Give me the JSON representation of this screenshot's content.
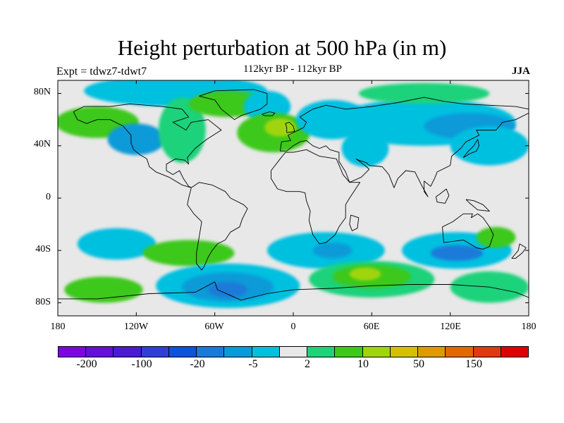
{
  "title": "Height perturbation at 500 hPa (in m)",
  "subtitle": "112kyr BP - 112kyr BP",
  "left_label": "Expt = tdwz7-tdwt7",
  "right_label": "JJA",
  "y_ticks": [
    "80N",
    "40N",
    "0",
    "40S",
    "80S"
  ],
  "x_ticks": [
    "180",
    "120W",
    "60W",
    "0",
    "60E",
    "120E",
    "180"
  ],
  "colorbar": {
    "colors": [
      "#7d06e0",
      "#6410d8",
      "#4a1bd1",
      "#2f3fd5",
      "#0a55d8",
      "#1a7ad8",
      "#0a9ad8",
      "#00c0e0",
      "#e8e8e8",
      "#1ed27a",
      "#3ec81a",
      "#a0d50a",
      "#d5c000",
      "#e09a00",
      "#e06a00",
      "#e03a10",
      "#e00000"
    ],
    "labels": [
      "-200",
      "-100",
      "-20",
      "-5",
      "2",
      "10",
      "50",
      "150"
    ]
  },
  "colors": {
    "neutral": "#e8e8e8",
    "light_blue": "#00c0e0",
    "mid_blue": "#0a9ad8",
    "deep_blue": "#1a7ad8",
    "green": "#1ed27a",
    "lime": "#3ec81a",
    "yellow_green": "#a0d50a",
    "coastline": "#000000"
  },
  "map_data": {
    "field": "500 hPa geopotential height perturbation",
    "units": "m",
    "season": "JJA",
    "lon_range": [
      -180,
      180
    ],
    "lat_range": [
      -90,
      90
    ],
    "anomalies": [
      {
        "lon": -90,
        "lat": 82,
        "rx": 70,
        "ry": 12,
        "level": "light_blue"
      },
      {
        "lon": -150,
        "lat": 58,
        "rx": 32,
        "ry": 12,
        "level": "lime"
      },
      {
        "lon": -120,
        "lat": 45,
        "rx": 22,
        "ry": 12,
        "level": "mid_blue"
      },
      {
        "lon": -85,
        "lat": 52,
        "rx": 18,
        "ry": 25,
        "level": "green"
      },
      {
        "lon": -50,
        "lat": 72,
        "rx": 30,
        "ry": 10,
        "level": "lime"
      },
      {
        "lon": -20,
        "lat": 70,
        "rx": 18,
        "ry": 12,
        "level": "light_blue"
      },
      {
        "lon": -15,
        "lat": 50,
        "rx": 28,
        "ry": 15,
        "level": "lime"
      },
      {
        "lon": -10,
        "lat": 54,
        "rx": 12,
        "ry": 7,
        "level": "yellow_green"
      },
      {
        "lon": 30,
        "lat": 60,
        "rx": 28,
        "ry": 15,
        "level": "light_blue"
      },
      {
        "lon": 55,
        "lat": 38,
        "rx": 18,
        "ry": 14,
        "level": "light_blue"
      },
      {
        "lon": 100,
        "lat": 58,
        "rx": 70,
        "ry": 18,
        "level": "light_blue"
      },
      {
        "lon": 135,
        "lat": 55,
        "rx": 35,
        "ry": 10,
        "level": "mid_blue"
      },
      {
        "lon": 100,
        "lat": 80,
        "rx": 50,
        "ry": 8,
        "level": "green"
      },
      {
        "lon": 150,
        "lat": 40,
        "rx": 30,
        "ry": 15,
        "level": "light_blue"
      },
      {
        "lon": -135,
        "lat": -35,
        "rx": 30,
        "ry": 12,
        "level": "light_blue"
      },
      {
        "lon": -80,
        "lat": -42,
        "rx": 35,
        "ry": 10,
        "level": "lime"
      },
      {
        "lon": 25,
        "lat": -40,
        "rx": 45,
        "ry": 14,
        "level": "light_blue"
      },
      {
        "lon": 30,
        "lat": -40,
        "rx": 15,
        "ry": 6,
        "level": "mid_blue"
      },
      {
        "lon": 125,
        "lat": -40,
        "rx": 42,
        "ry": 14,
        "level": "light_blue"
      },
      {
        "lon": 125,
        "lat": -42,
        "rx": 20,
        "ry": 6,
        "level": "deep_blue"
      },
      {
        "lon": 155,
        "lat": -30,
        "rx": 15,
        "ry": 8,
        "level": "lime"
      },
      {
        "lon": -50,
        "lat": -67,
        "rx": 55,
        "ry": 17,
        "level": "light_blue"
      },
      {
        "lon": -50,
        "lat": -68,
        "rx": 35,
        "ry": 11,
        "level": "mid_blue"
      },
      {
        "lon": -50,
        "lat": -70,
        "rx": 15,
        "ry": 6,
        "level": "deep_blue"
      },
      {
        "lon": -145,
        "lat": -70,
        "rx": 30,
        "ry": 10,
        "level": "lime"
      },
      {
        "lon": 60,
        "lat": -62,
        "rx": 48,
        "ry": 14,
        "level": "green"
      },
      {
        "lon": 60,
        "lat": -60,
        "rx": 30,
        "ry": 9,
        "level": "lime"
      },
      {
        "lon": 55,
        "lat": -58,
        "rx": 12,
        "ry": 5,
        "level": "yellow_green"
      },
      {
        "lon": 150,
        "lat": -68,
        "rx": 30,
        "ry": 12,
        "level": "green"
      }
    ],
    "coastlines": [
      {
        "name": "north-america",
        "points": [
          [
            -168,
            66
          ],
          [
            -160,
            70
          ],
          [
            -140,
            70
          ],
          [
            -125,
            72
          ],
          [
            -100,
            70
          ],
          [
            -85,
            68
          ],
          [
            -80,
            62
          ],
          [
            -92,
            58
          ],
          [
            -82,
            52
          ],
          [
            -78,
            58
          ],
          [
            -65,
            60
          ],
          [
            -55,
            52
          ],
          [
            -66,
            45
          ],
          [
            -70,
            42
          ],
          [
            -75,
            38
          ],
          [
            -81,
            31
          ],
          [
            -80,
            26
          ],
          [
            -83,
            29
          ],
          [
            -90,
            30
          ],
          [
            -97,
            26
          ],
          [
            -97,
            21
          ],
          [
            -92,
            18
          ],
          [
            -87,
            21
          ],
          [
            -84,
            15
          ],
          [
            -80,
            9
          ],
          [
            -78,
            8
          ],
          [
            -85,
            10
          ],
          [
            -95,
            16
          ],
          [
            -105,
            20
          ],
          [
            -110,
            24
          ],
          [
            -112,
            30
          ],
          [
            -117,
            33
          ],
          [
            -122,
            37
          ],
          [
            -124,
            42
          ],
          [
            -124,
            48
          ],
          [
            -130,
            55
          ],
          [
            -140,
            60
          ],
          [
            -150,
            60
          ],
          [
            -158,
            57
          ],
          [
            -165,
            60
          ],
          [
            -168,
            66
          ]
        ]
      },
      {
        "name": "greenland",
        "points": [
          [
            -72,
            78
          ],
          [
            -60,
            82
          ],
          [
            -30,
            83
          ],
          [
            -20,
            80
          ],
          [
            -20,
            72
          ],
          [
            -25,
            68
          ],
          [
            -40,
            63
          ],
          [
            -45,
            60
          ],
          [
            -50,
            64
          ],
          [
            -55,
            68
          ],
          [
            -60,
            75
          ],
          [
            -72,
            78
          ]
        ]
      },
      {
        "name": "south-america",
        "points": [
          [
            -78,
            8
          ],
          [
            -72,
            12
          ],
          [
            -62,
            10
          ],
          [
            -52,
            5
          ],
          [
            -48,
            0
          ],
          [
            -38,
            -5
          ],
          [
            -35,
            -8
          ],
          [
            -39,
            -16
          ],
          [
            -41,
            -22
          ],
          [
            -48,
            -26
          ],
          [
            -52,
            -32
          ],
          [
            -58,
            -35
          ],
          [
            -62,
            -40
          ],
          [
            -65,
            -45
          ],
          [
            -68,
            -52
          ],
          [
            -70,
            -55
          ],
          [
            -74,
            -50
          ],
          [
            -74,
            -42
          ],
          [
            -72,
            -30
          ],
          [
            -70,
            -18
          ],
          [
            -76,
            -12
          ],
          [
            -81,
            -5
          ],
          [
            -80,
            0
          ],
          [
            -78,
            8
          ]
        ]
      },
      {
        "name": "africa",
        "points": [
          [
            -17,
            21
          ],
          [
            -17,
            15
          ],
          [
            -12,
            7
          ],
          [
            -5,
            5
          ],
          [
            5,
            5
          ],
          [
            9,
            4
          ],
          [
            10,
            -2
          ],
          [
            13,
            -10
          ],
          [
            12,
            -17
          ],
          [
            15,
            -28
          ],
          [
            20,
            -35
          ],
          [
            25,
            -34
          ],
          [
            32,
            -28
          ],
          [
            35,
            -22
          ],
          [
            40,
            -15
          ],
          [
            40,
            -5
          ],
          [
            43,
            0
          ],
          [
            51,
            12
          ],
          [
            43,
            12
          ],
          [
            38,
            18
          ],
          [
            33,
            30
          ],
          [
            20,
            32
          ],
          [
            10,
            37
          ],
          [
            0,
            35
          ],
          [
            -6,
            35
          ],
          [
            -10,
            30
          ],
          [
            -17,
            21
          ]
        ]
      },
      {
        "name": "eurasia",
        "points": [
          [
            -10,
            36
          ],
          [
            -9,
            43
          ],
          [
            -2,
            44
          ],
          [
            -4,
            48
          ],
          [
            2,
            51
          ],
          [
            8,
            54
          ],
          [
            10,
            58
          ],
          [
            5,
            62
          ],
          [
            15,
            68
          ],
          [
            25,
            71
          ],
          [
            40,
            68
          ],
          [
            60,
            70
          ],
          [
            80,
            73
          ],
          [
            100,
            77
          ],
          [
            115,
            74
          ],
          [
            130,
            72
          ],
          [
            150,
            71
          ],
          [
            170,
            70
          ],
          [
            180,
            68
          ],
          [
            180,
            65
          ],
          [
            170,
            60
          ],
          [
            160,
            58
          ],
          [
            155,
            52
          ],
          [
            140,
            52
          ],
          [
            142,
            48
          ],
          [
            132,
            43
          ],
          [
            128,
            38
          ],
          [
            121,
            32
          ],
          [
            120,
            25
          ],
          [
            110,
            20
          ],
          [
            108,
            15
          ],
          [
            105,
            9
          ],
          [
            100,
            13
          ],
          [
            100,
            5
          ],
          [
            103,
            1
          ],
          [
            98,
            10
          ],
          [
            93,
            20
          ],
          [
            86,
            21
          ],
          [
            80,
            15
          ],
          [
            77,
            8
          ],
          [
            73,
            18
          ],
          [
            68,
            24
          ],
          [
            58,
            25
          ],
          [
            56,
            27
          ],
          [
            50,
            29
          ],
          [
            48,
            30
          ],
          [
            56,
            24
          ],
          [
            58,
            22
          ],
          [
            52,
            16
          ],
          [
            43,
            12
          ],
          [
            40,
            20
          ],
          [
            35,
            28
          ],
          [
            35,
            35
          ],
          [
            28,
            37
          ],
          [
            25,
            40
          ],
          [
            20,
            38
          ],
          [
            15,
            40
          ],
          [
            10,
            44
          ],
          [
            5,
            43
          ],
          [
            0,
            40
          ],
          [
            -5,
            36
          ],
          [
            -10,
            36
          ]
        ]
      },
      {
        "name": "australia",
        "points": [
          [
            114,
            -22
          ],
          [
            122,
            -18
          ],
          [
            130,
            -12
          ],
          [
            137,
            -12
          ],
          [
            136,
            -15
          ],
          [
            141,
            -12
          ],
          [
            145,
            -15
          ],
          [
            150,
            -22
          ],
          [
            153,
            -28
          ],
          [
            150,
            -37
          ],
          [
            145,
            -39
          ],
          [
            140,
            -38
          ],
          [
            135,
            -35
          ],
          [
            130,
            -32
          ],
          [
            115,
            -34
          ],
          [
            114,
            -22
          ]
        ]
      },
      {
        "name": "antarctica-edge",
        "points": [
          [
            -180,
            -77
          ],
          [
            -150,
            -77
          ],
          [
            -110,
            -73
          ],
          [
            -75,
            -72
          ],
          [
            -60,
            -64
          ],
          [
            -58,
            -70
          ],
          [
            -40,
            -78
          ],
          [
            -20,
            -73
          ],
          [
            0,
            -70
          ],
          [
            30,
            -69
          ],
          [
            60,
            -67
          ],
          [
            90,
            -66
          ],
          [
            120,
            -66
          ],
          [
            150,
            -68
          ],
          [
            170,
            -72
          ],
          [
            180,
            -76
          ]
        ]
      },
      {
        "name": "british-isles",
        "points": [
          [
            -5,
            50
          ],
          [
            1,
            51
          ],
          [
            0,
            55
          ],
          [
            -3,
            58
          ],
          [
            -6,
            57
          ],
          [
            -5,
            54
          ],
          [
            -5,
            50
          ]
        ]
      },
      {
        "name": "japan",
        "points": [
          [
            130,
            31
          ],
          [
            135,
            34
          ],
          [
            140,
            36
          ],
          [
            142,
            40
          ],
          [
            141,
            45
          ],
          [
            138,
            40
          ],
          [
            133,
            35
          ],
          [
            130,
            31
          ]
        ]
      },
      {
        "name": "madagascar",
        "points": [
          [
            44,
            -13
          ],
          [
            50,
            -15
          ],
          [
            49,
            -23
          ],
          [
            45,
            -25
          ],
          [
            43,
            -20
          ],
          [
            44,
            -13
          ]
        ]
      },
      {
        "name": "borneo",
        "points": [
          [
            109,
            1
          ],
          [
            112,
            3
          ],
          [
            117,
            7
          ],
          [
            119,
            2
          ],
          [
            116,
            -4
          ],
          [
            110,
            -3
          ],
          [
            109,
            1
          ]
        ]
      },
      {
        "name": "new-guinea",
        "points": [
          [
            132,
            -1
          ],
          [
            138,
            -2
          ],
          [
            145,
            -5
          ],
          [
            150,
            -10
          ],
          [
            141,
            -9
          ],
          [
            135,
            -4
          ],
          [
            132,
            -1
          ]
        ]
      },
      {
        "name": "new-zealand",
        "points": [
          [
            173,
            -35
          ],
          [
            178,
            -38
          ],
          [
            175,
            -42
          ],
          [
            170,
            -46
          ],
          [
            167,
            -46
          ],
          [
            172,
            -40
          ],
          [
            173,
            -35
          ]
        ]
      },
      {
        "name": "iceland",
        "points": [
          [
            -24,
            64
          ],
          [
            -18,
            66
          ],
          [
            -14,
            65
          ],
          [
            -16,
            63
          ],
          [
            -22,
            63
          ],
          [
            -24,
            64
          ]
        ]
      }
    ]
  }
}
